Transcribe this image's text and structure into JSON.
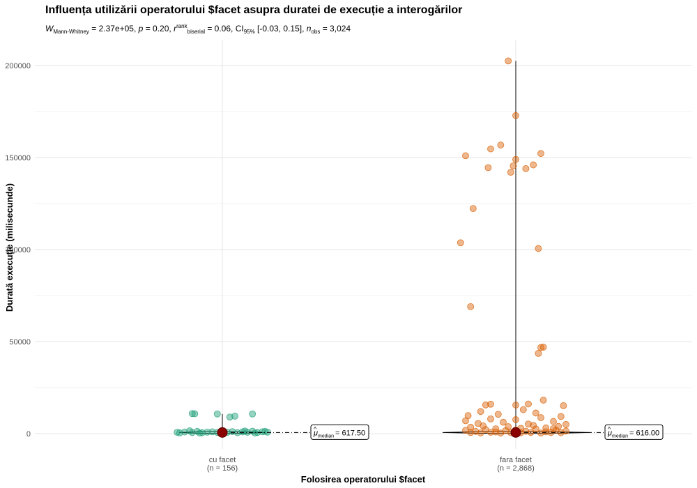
{
  "chart_data": {
    "type": "scatter",
    "title": "Influența utilizării operatorului $facet asupra duratei de execuție a interogărilor",
    "subtitle": {
      "stat_symbol": "W",
      "stat_subscript": "Mann-Whitney",
      "stat_value": "= 2.37e+05,",
      "p_symbol": "p",
      "p_value": "= 0.20,",
      "effect_symbol": "r",
      "effect_superscript": "rank",
      "effect_subscript": "biserial",
      "effect_value": "= 0.06,",
      "ci_symbol": "CI",
      "ci_subscript": "95%",
      "ci_value": "[-0.03, 0.15],",
      "n_symbol": "n",
      "n_subscript": "obs",
      "n_value": "= 3,024"
    },
    "xlabel": "Folosirea operatorului $facet",
    "ylabel": "Durată execuție (milisecunde)",
    "ylim": [
      -3000,
      215000
    ],
    "yticks": [
      0,
      50000,
      100000,
      150000,
      200000
    ],
    "ytick_labels": [
      "0",
      "50000",
      "100000",
      "150000",
      "200000"
    ],
    "grid": true,
    "categories": [
      "cu facet",
      "fara facet"
    ],
    "category_counts": [
      "(n = 156)",
      "(n = 2,868)"
    ],
    "colors": {
      "cu facet": "#1b9e77",
      "fara facet": "#d95f02",
      "median_point": "#8b0000"
    },
    "medians": [
      {
        "category": "cu facet",
        "value": 617.5,
        "label_symbol": "μ",
        "label_subscript": "median",
        "label_value": "= 617.50"
      },
      {
        "category": "fara facet",
        "value": 616.0,
        "label_symbol": "μ",
        "label_subscript": "median",
        "label_value": "= 616.00"
      }
    ],
    "series": [
      {
        "name": "cu facet",
        "whisker_max": 10700,
        "points": [
          [
            -0.12,
            10900
          ],
          [
            -0.11,
            10800
          ],
          [
            -0.02,
            10700
          ],
          [
            0.03,
            9000
          ],
          [
            0.05,
            9500
          ],
          [
            0.12,
            10700
          ],
          [
            -0.18,
            700
          ],
          [
            -0.15,
            900
          ],
          [
            -0.12,
            600
          ],
          [
            -0.1,
            1200
          ],
          [
            -0.08,
            500
          ],
          [
            -0.06,
            800
          ],
          [
            -0.04,
            1000
          ],
          [
            -0.02,
            650
          ],
          [
            0.0,
            900
          ],
          [
            0.02,
            700
          ],
          [
            0.04,
            1100
          ],
          [
            0.06,
            500
          ],
          [
            0.08,
            950
          ],
          [
            0.1,
            750
          ],
          [
            0.12,
            1300
          ],
          [
            0.14,
            600
          ],
          [
            0.16,
            1000
          ],
          [
            0.18,
            800
          ],
          [
            -0.17,
            400
          ],
          [
            -0.13,
            1500
          ],
          [
            -0.09,
            300
          ],
          [
            0.09,
            1400
          ],
          [
            0.13,
            350
          ],
          [
            0.17,
            1200
          ]
        ]
      },
      {
        "name": "fara facet",
        "whisker_max": 202500,
        "points": [
          [
            -0.03,
            202500
          ],
          [
            0.0,
            172800
          ],
          [
            -0.06,
            156800
          ],
          [
            -0.1,
            154700
          ],
          [
            0.0,
            149000
          ],
          [
            -0.2,
            151000
          ],
          [
            0.1,
            152200
          ],
          [
            0.07,
            146000
          ],
          [
            -0.11,
            144500
          ],
          [
            0.04,
            144000
          ],
          [
            -0.02,
            142000
          ],
          [
            -0.01,
            145500
          ],
          [
            -0.17,
            122300
          ],
          [
            -0.22,
            103700
          ],
          [
            0.09,
            100600
          ],
          [
            -0.18,
            69000
          ],
          [
            0.1,
            46800
          ],
          [
            0.09,
            43600
          ],
          [
            0.11,
            47000
          ],
          [
            0.11,
            18200
          ],
          [
            0.19,
            15200
          ],
          [
            0.05,
            16100
          ],
          [
            -0.1,
            16000
          ],
          [
            -0.12,
            15600
          ],
          [
            0.0,
            15500
          ],
          [
            -0.2,
            7000
          ],
          [
            -0.15,
            5500
          ],
          [
            -0.1,
            8000
          ],
          [
            -0.05,
            6200
          ],
          [
            0.0,
            7600
          ],
          [
            0.05,
            5200
          ],
          [
            0.1,
            8700
          ],
          [
            0.15,
            6600
          ],
          [
            0.2,
            5000
          ],
          [
            -0.18,
            3500
          ],
          [
            -0.13,
            4200
          ],
          [
            -0.08,
            2600
          ],
          [
            -0.03,
            3800
          ],
          [
            0.02,
            2900
          ],
          [
            0.07,
            4500
          ],
          [
            0.12,
            3100
          ],
          [
            0.17,
            3900
          ],
          [
            -0.2,
            1800
          ],
          [
            -0.16,
            1200
          ],
          [
            -0.12,
            2200
          ],
          [
            -0.08,
            900
          ],
          [
            -0.04,
            1600
          ],
          [
            0.0,
            2000
          ],
          [
            0.04,
            1300
          ],
          [
            0.08,
            2500
          ],
          [
            0.12,
            1000
          ],
          [
            0.16,
            1900
          ],
          [
            0.2,
            1400
          ],
          [
            -0.18,
            600
          ],
          [
            -0.14,
            400
          ],
          [
            -0.1,
            700
          ],
          [
            -0.06,
            300
          ],
          [
            -0.02,
            550
          ],
          [
            0.02,
            450
          ],
          [
            0.06,
            650
          ],
          [
            0.1,
            350
          ],
          [
            0.14,
            600
          ],
          [
            0.18,
            500
          ],
          [
            -0.19,
            9800
          ],
          [
            0.18,
            9300
          ],
          [
            -0.07,
            10500
          ],
          [
            0.08,
            11200
          ],
          [
            -0.14,
            12000
          ],
          [
            0.03,
            13000
          ],
          [
            0.15,
            2700
          ]
        ]
      }
    ]
  }
}
